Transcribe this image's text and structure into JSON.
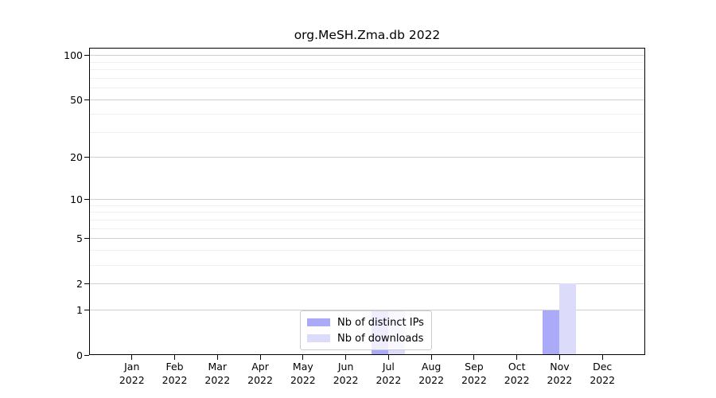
{
  "chart_data": {
    "type": "bar",
    "title": "org.MeSH.Zma.db 2022",
    "categories": [
      "Jan",
      "Feb",
      "Mar",
      "Apr",
      "May",
      "Jun",
      "Jul",
      "Aug",
      "Sep",
      "Oct",
      "Nov",
      "Dec"
    ],
    "x_tick_year": "2022",
    "series": [
      {
        "name": "Nb of distinct IPs",
        "color": "#aaaaf8",
        "values": [
          0,
          0,
          0,
          0,
          0,
          0,
          1,
          0,
          0,
          0,
          1,
          0
        ]
      },
      {
        "name": "Nb of downloads",
        "color": "#dcdcfa",
        "values": [
          0,
          0,
          0,
          0,
          0,
          0,
          1,
          0,
          0,
          0,
          2,
          0
        ]
      }
    ],
    "y_axis": {
      "scale": "log1p",
      "major_ticks": [
        0,
        1,
        2,
        5,
        10,
        20,
        50,
        100
      ],
      "minor_gridlines": [
        3,
        4,
        6,
        7,
        8,
        9,
        30,
        40,
        60,
        70,
        80,
        90
      ],
      "max": 113
    },
    "legend_position": "inside-bottom-center",
    "grid": "horizontal",
    "colors": {
      "major_grid": "#d0d0d0",
      "minor_grid": "#f0f0f0",
      "spine": "#000000",
      "background": "#ffffff"
    }
  }
}
